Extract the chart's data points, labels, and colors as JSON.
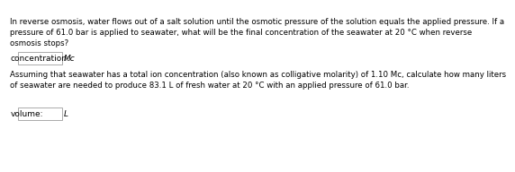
{
  "background_color": "#ffffff",
  "text_color": "#000000",
  "paragraph1": "In reverse osmosis, water flows out of a salt solution until the osmotic pressure of the solution equals the applied pressure. If a\npressure of 61.0 bar is applied to seawater, what will be the final concentration of the seawater at 20 °C when reverse\nosmosis stops?",
  "label1": "concentration:",
  "unit1": "Mc",
  "paragraph2": "Assuming that seawater has a total ion concentration (also known as colligative molarity) of 1.10 Mc, calculate how many liters\nof seawater are needed to produce 83.1 L of fresh water at 20 °C with an applied pressure of 61.0 bar.",
  "label2": "volume:",
  "unit2": "L",
  "fontsize_para": 6.2,
  "fontsize_label": 6.5
}
